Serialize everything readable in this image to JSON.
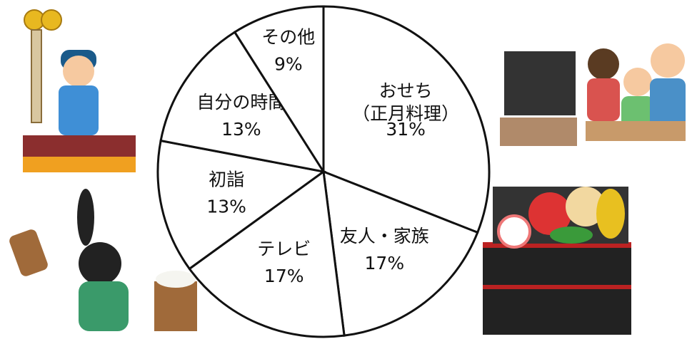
{
  "chart_data": {
    "type": "pie",
    "categories": [
      "おせち（正月料理）",
      "友人・家族",
      "テレビ",
      "初詣",
      "自分の時間",
      "その他"
    ],
    "values": [
      31,
      17,
      17,
      13,
      13,
      9
    ],
    "value_labels": [
      "31%",
      "17%",
      "17%",
      "13%",
      "13%",
      "9%"
    ],
    "color": "#ffffff"
  }
}
